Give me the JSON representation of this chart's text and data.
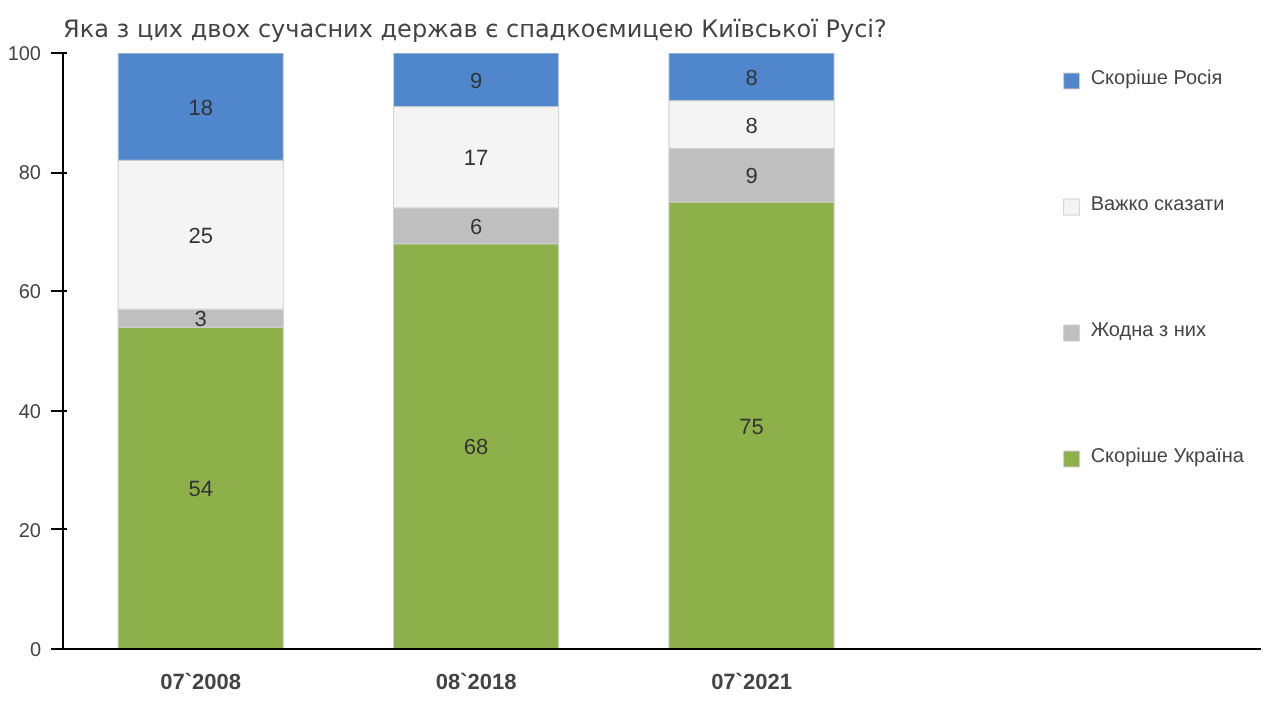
{
  "chart_data": {
    "type": "bar",
    "title": "Яка з цих двох сучасних держав є спадкоємицею Київської Русі?",
    "categories": [
      "07`2008",
      "08`2018",
      "07`2021"
    ],
    "stacked": true,
    "data_labels": true,
    "legend": "right",
    "grid": false,
    "ylim": [
      0,
      100
    ],
    "yticks": [
      0,
      20,
      40,
      60,
      80,
      100
    ],
    "series": [
      {
        "name": "Скоріше Україна",
        "color": "#8db04a",
        "values": [
          54,
          68,
          75
        ]
      },
      {
        "name": "Жодна з них",
        "color": "#bfbfbf",
        "values": [
          3,
          6,
          9
        ]
      },
      {
        "name": "Важко сказати",
        "color": "#f4f4f4",
        "values": [
          25,
          17,
          8
        ]
      },
      {
        "name": "Скоріше Росія",
        "color": "#4f86cc",
        "values": [
          18,
          9,
          8
        ]
      }
    ]
  }
}
